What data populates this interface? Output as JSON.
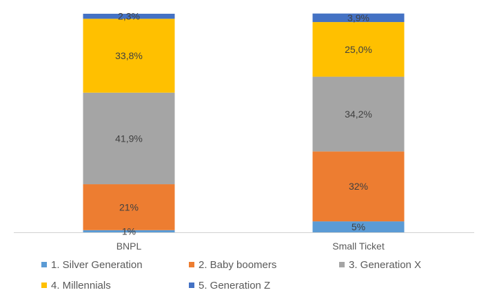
{
  "chart_data": {
    "type": "bar",
    "stacked": true,
    "normalized_to_100": true,
    "categories": [
      "BNPL",
      "Small Ticket"
    ],
    "series": [
      {
        "name": "1. Silver Generation",
        "color": "#5B9BD5",
        "values": [
          1,
          5
        ],
        "labels": [
          "1%",
          "5%"
        ]
      },
      {
        "name": "2. Baby boomers",
        "color": "#ED7D31",
        "values": [
          21,
          32
        ],
        "labels": [
          "21%",
          "32%"
        ]
      },
      {
        "name": "3. Generation X",
        "color": "#A5A5A5",
        "values": [
          41.9,
          34.2
        ],
        "labels": [
          "41,9%",
          "34,2%"
        ]
      },
      {
        "name": "4. Millennials",
        "color": "#FFC000",
        "values": [
          33.8,
          25.0
        ],
        "labels": [
          "33,8%",
          "25,0%"
        ]
      },
      {
        "name": "5. Generation Z",
        "color": "#4472C4",
        "values": [
          2.3,
          3.9
        ],
        "labels": [
          "2,3%",
          "3,9%"
        ]
      }
    ],
    "ylim": [
      0,
      100
    ],
    "grid": false,
    "legend_position": "bottom",
    "title": "",
    "xlabel": "",
    "ylabel": ""
  }
}
